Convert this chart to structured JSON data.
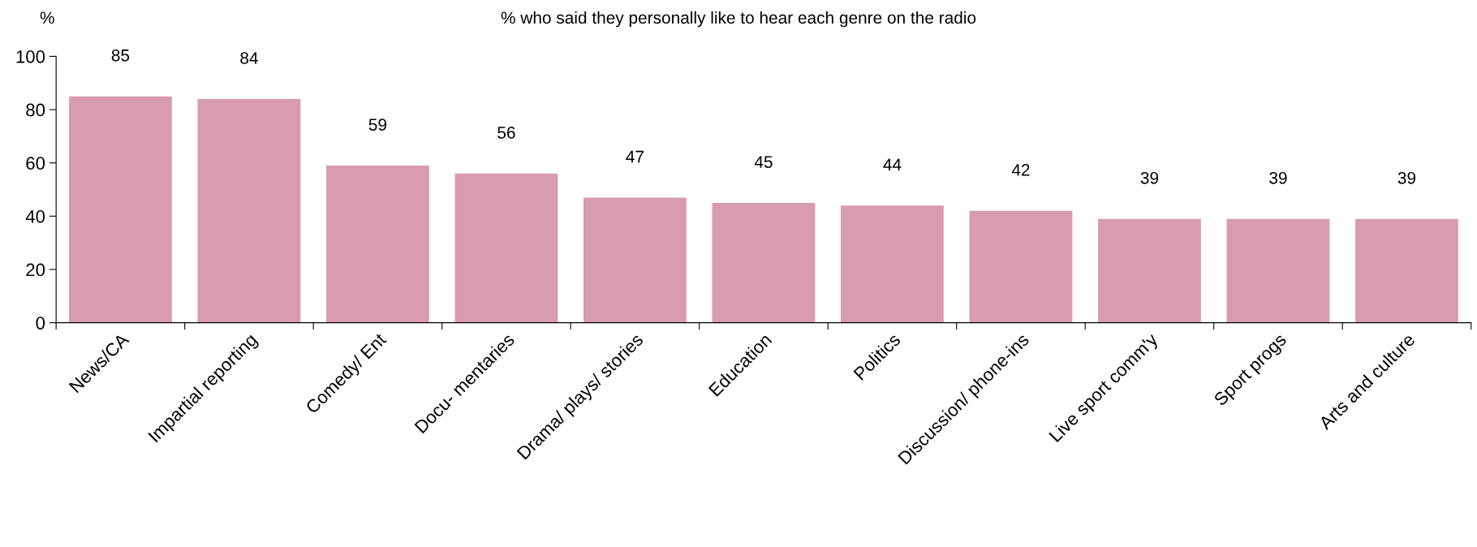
{
  "chart_data": {
    "type": "bar",
    "title": "% who said they personally like to hear each genre on the radio",
    "ylabel": "%",
    "categories": [
      "News/CA",
      "Impartial reporting",
      "Comedy/ Ent",
      "Docu- mentaries",
      "Drama/ plays/ stories",
      "Education",
      "Politics",
      "Discussion/ phone-ins",
      "Live sport comm'y",
      "Sport progs",
      "Arts and culture"
    ],
    "values": [
      85,
      84,
      59,
      56,
      47,
      45,
      44,
      42,
      39,
      39,
      39
    ],
    "color": "#d99bb0",
    "ylim": [
      0,
      100
    ],
    "yticks": [
      0,
      20,
      40,
      60,
      80,
      100
    ],
    "grid": false,
    "data_labels": true
  }
}
